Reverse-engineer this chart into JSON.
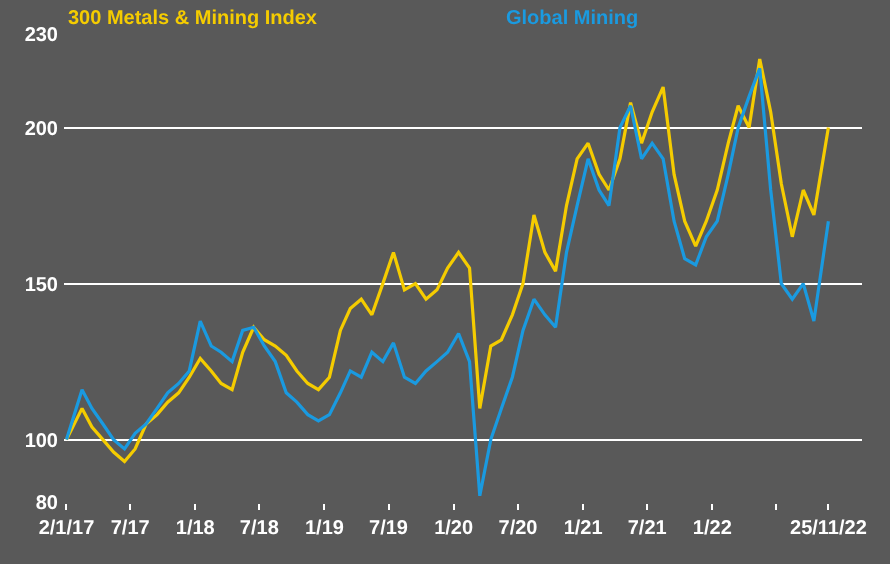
{
  "chart_data": {
    "type": "line",
    "x": [
      "2017-01-02",
      "2017-02-15",
      "2017-03-15",
      "2017-04-15",
      "2017-05-15",
      "2017-06-15",
      "2017-07-15",
      "2017-08-15",
      "2017-09-15",
      "2017-10-15",
      "2017-11-15",
      "2017-12-15",
      "2018-01-15",
      "2018-02-15",
      "2018-03-15",
      "2018-04-15",
      "2018-05-15",
      "2018-06-15",
      "2018-07-15",
      "2018-08-15",
      "2018-09-15",
      "2018-10-15",
      "2018-11-15",
      "2018-12-15",
      "2019-01-15",
      "2019-02-15",
      "2019-03-15",
      "2019-04-15",
      "2019-05-15",
      "2019-06-15",
      "2019-07-15",
      "2019-08-15",
      "2019-09-15",
      "2019-10-15",
      "2019-11-15",
      "2019-12-15",
      "2020-01-15",
      "2020-02-15",
      "2020-03-15",
      "2020-04-15",
      "2020-05-15",
      "2020-06-15",
      "2020-07-15",
      "2020-08-15",
      "2020-09-15",
      "2020-10-15",
      "2020-11-15",
      "2020-12-15",
      "2021-01-15",
      "2021-02-15",
      "2021-03-15",
      "2021-04-15",
      "2021-05-15",
      "2021-06-15",
      "2021-07-15",
      "2021-08-15",
      "2021-09-15",
      "2021-10-15",
      "2021-11-15",
      "2021-12-15",
      "2022-01-15",
      "2022-02-15",
      "2022-03-15",
      "2022-04-15",
      "2022-05-15",
      "2022-06-15",
      "2022-07-15",
      "2022-08-15",
      "2022-09-15",
      "2022-10-15",
      "2022-11-25"
    ],
    "series": [
      {
        "name": "300 Metals & Mining Index",
        "color": "#f5cc00",
        "values": [
          100,
          110,
          104,
          100,
          96,
          93,
          97,
          105,
          108,
          112,
          115,
          120,
          126,
          122,
          118,
          116,
          128,
          136,
          132,
          130,
          127,
          122,
          118,
          116,
          120,
          135,
          142,
          145,
          140,
          150,
          160,
          148,
          150,
          145,
          148,
          155,
          160,
          155,
          110,
          130,
          132,
          140,
          150,
          172,
          160,
          154,
          175,
          190,
          195,
          185,
          180,
          190,
          208,
          195,
          205,
          213,
          185,
          170,
          162,
          170,
          180,
          195,
          207,
          200,
          222,
          205,
          182,
          165,
          180,
          172,
          200
        ]
      },
      {
        "name": "Global Mining",
        "color": "#1a9ae0",
        "values": [
          100,
          116,
          110,
          105,
          100,
          97,
          102,
          105,
          110,
          115,
          118,
          122,
          138,
          130,
          128,
          125,
          135,
          136,
          130,
          125,
          115,
          112,
          108,
          106,
          108,
          115,
          122,
          120,
          128,
          125,
          131,
          120,
          118,
          122,
          125,
          128,
          134,
          125,
          82,
          100,
          110,
          120,
          135,
          145,
          140,
          136,
          160,
          175,
          190,
          180,
          175,
          200,
          207,
          190,
          195,
          190,
          170,
          158,
          156,
          165,
          170,
          185,
          200,
          210,
          219,
          180,
          150,
          145,
          150,
          138,
          170
        ]
      }
    ],
    "xlim": [
      "2016-12-26",
      "2023-02-28"
    ],
    "xticks": [
      {
        "value": "2017-01-02",
        "label": "2/1/17"
      },
      {
        "value": "2017-07-01",
        "label": "7/17"
      },
      {
        "value": "2018-01-01",
        "label": "1/18"
      },
      {
        "value": "2018-07-01",
        "label": "7/18"
      },
      {
        "value": "2019-01-01",
        "label": "1/19"
      },
      {
        "value": "2019-07-01",
        "label": "7/19"
      },
      {
        "value": "2020-01-01",
        "label": "1/20"
      },
      {
        "value": "2020-07-01",
        "label": "7/20"
      },
      {
        "value": "2021-01-01",
        "label": "1/21"
      },
      {
        "value": "2021-07-01",
        "label": "7/21"
      },
      {
        "value": "2022-01-01",
        "label": "1/22"
      },
      {
        "value": "2022-07-01",
        "label": null
      },
      {
        "value": "2022-11-25",
        "label": "25/11/22"
      }
    ],
    "ylim": [
      80,
      230
    ],
    "yticks": [
      80,
      100,
      150,
      200,
      230
    ],
    "grid": "y",
    "line_style": "solid"
  }
}
